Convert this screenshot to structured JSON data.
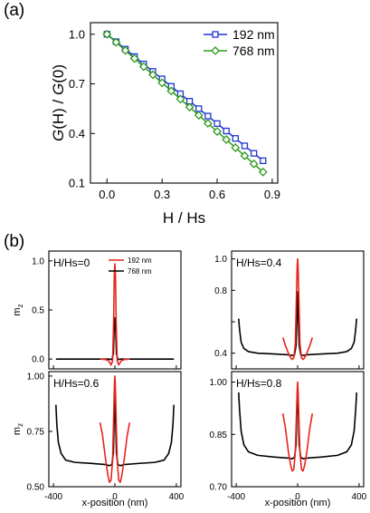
{
  "figure": {
    "panel_a_label": "(a)",
    "panel_b_label": "(b)"
  },
  "chart_data": [
    {
      "panel": "a",
      "type": "line",
      "xlabel": "H / Hs",
      "ylabel_parts": [
        "G",
        "(H) / ",
        "G",
        "(0)"
      ],
      "xlim": [
        -0.09,
        0.93
      ],
      "ylim": [
        0.1,
        1.07
      ],
      "xticks": [
        0.0,
        0.3,
        0.6,
        0.9
      ],
      "xtick_labels": [
        "0.0",
        "0.3",
        "0.6",
        "0.9"
      ],
      "yticks": [
        0.1,
        0.4,
        0.7,
        1.0
      ],
      "ytick_labels": [
        "0.1",
        "0.4",
        "0.7",
        "1.0"
      ],
      "legend_position": "top-right",
      "series": [
        {
          "name": "192 nm",
          "color": "#1f35d6",
          "marker": "square",
          "x": [
            0.0,
            0.05,
            0.1,
            0.15,
            0.2,
            0.25,
            0.3,
            0.35,
            0.4,
            0.45,
            0.5,
            0.55,
            0.6,
            0.65,
            0.7,
            0.75,
            0.8,
            0.85
          ],
          "y": [
            1.0,
            0.955,
            0.91,
            0.865,
            0.82,
            0.775,
            0.73,
            0.685,
            0.64,
            0.595,
            0.55,
            0.505,
            0.46,
            0.415,
            0.37,
            0.325,
            0.28,
            0.235
          ]
        },
        {
          "name": "768 nm",
          "color": "#2e9a1c",
          "marker": "diamond",
          "x": [
            0.0,
            0.05,
            0.1,
            0.15,
            0.2,
            0.25,
            0.3,
            0.35,
            0.4,
            0.45,
            0.5,
            0.55,
            0.6,
            0.65,
            0.7,
            0.75,
            0.8,
            0.85
          ],
          "y": [
            1.0,
            0.951,
            0.902,
            0.853,
            0.804,
            0.755,
            0.706,
            0.657,
            0.608,
            0.559,
            0.51,
            0.461,
            0.412,
            0.363,
            0.314,
            0.265,
            0.216,
            0.167
          ]
        }
      ]
    },
    {
      "panel": "b1",
      "type": "line",
      "annotation": "H/Hs=0",
      "ylabel": "m",
      "ylabel_sub": "z",
      "xlim": [
        -430,
        430
      ],
      "ylim": [
        -0.1,
        1.1
      ],
      "yticks": [
        0.0,
        0.5,
        1.0
      ],
      "ytick_labels": [
        "0.0",
        "0.5",
        "1.0"
      ],
      "xticks": [
        -400,
        0,
        400
      ],
      "show_xtick_labels": false,
      "legend": [
        "192 nm",
        "768 nm"
      ],
      "series": [
        {
          "name": "192 nm",
          "color": "#e8231a",
          "x": [
            -96,
            -60,
            -40,
            -25,
            -15,
            -8,
            -4,
            0,
            4,
            8,
            15,
            25,
            40,
            60,
            96
          ],
          "y": [
            0.0,
            -0.005,
            -0.02,
            -0.06,
            -0.02,
            0.4,
            0.85,
            0.97,
            0.85,
            0.4,
            -0.02,
            -0.06,
            -0.02,
            -0.005,
            0.0
          ]
        },
        {
          "name": "768 nm",
          "color": "#000000",
          "x": [
            -384,
            -200,
            -100,
            -40,
            -20,
            -10,
            -5,
            0,
            5,
            10,
            20,
            40,
            100,
            200,
            384
          ],
          "y": [
            0.0,
            0.0,
            0.0,
            0.0,
            -0.005,
            0.05,
            0.3,
            0.42,
            0.3,
            0.05,
            -0.005,
            0.0,
            0.0,
            0.0,
            0.0
          ]
        }
      ]
    },
    {
      "panel": "b2",
      "type": "line",
      "annotation": "H/Hs=0.4",
      "xlim": [
        -430,
        430
      ],
      "ylim": [
        0.3,
        1.05
      ],
      "yticks": [
        0.4,
        0.6,
        0.8,
        1.0
      ],
      "ytick_labels": [
        "0.4",
        "",
        "0.8",
        "1.0"
      ],
      "xticks": [
        -400,
        0,
        400
      ],
      "show_xtick_labels": false,
      "series": [
        {
          "name": "192 nm",
          "color": "#e8231a",
          "x": [
            -96,
            -80,
            -60,
            -45,
            -35,
            -25,
            -15,
            -8,
            -3,
            0,
            3,
            8,
            15,
            25,
            35,
            45,
            60,
            80,
            96
          ],
          "y": [
            0.5,
            0.45,
            0.4,
            0.37,
            0.36,
            0.37,
            0.46,
            0.75,
            0.95,
            1.0,
            0.95,
            0.75,
            0.46,
            0.37,
            0.36,
            0.37,
            0.4,
            0.45,
            0.5
          ]
        },
        {
          "name": "768 nm",
          "color": "#000000",
          "x": [
            -384,
            -378,
            -368,
            -350,
            -320,
            -260,
            -150,
            -60,
            -35,
            -20,
            -10,
            -4,
            0,
            4,
            10,
            20,
            35,
            60,
            150,
            260,
            320,
            350,
            368,
            378,
            384
          ],
          "y": [
            0.62,
            0.55,
            0.47,
            0.43,
            0.41,
            0.4,
            0.395,
            0.39,
            0.385,
            0.39,
            0.45,
            0.65,
            0.79,
            0.65,
            0.45,
            0.39,
            0.385,
            0.39,
            0.395,
            0.4,
            0.41,
            0.43,
            0.47,
            0.55,
            0.62
          ]
        }
      ]
    },
    {
      "panel": "b3",
      "type": "line",
      "annotation": "H/Hs=0.6",
      "ylabel": "m",
      "ylabel_sub": "z",
      "xlim": [
        -430,
        430
      ],
      "ylim": [
        0.5,
        1.02
      ],
      "xticks": [
        -400,
        0,
        400
      ],
      "xtick_labels": [
        "-400",
        "0",
        "400"
      ],
      "yticks": [
        0.5,
        0.75,
        1.0
      ],
      "ytick_labels": [
        "0.50",
        "0.75",
        "1.00"
      ],
      "xlabel": "x-position (nm)",
      "series": [
        {
          "name": "192 nm",
          "color": "#e8231a",
          "x": [
            -96,
            -80,
            -60,
            -45,
            -35,
            -25,
            -15,
            -8,
            -3,
            0,
            3,
            8,
            15,
            25,
            35,
            45,
            60,
            80,
            96
          ],
          "y": [
            0.79,
            0.73,
            0.62,
            0.55,
            0.52,
            0.53,
            0.62,
            0.82,
            0.96,
            1.0,
            0.96,
            0.82,
            0.62,
            0.53,
            0.52,
            0.55,
            0.62,
            0.73,
            0.79
          ]
        },
        {
          "name": "768 nm",
          "color": "#000000",
          "x": [
            -384,
            -378,
            -368,
            -350,
            -320,
            -260,
            -150,
            -60,
            -35,
            -20,
            -10,
            -4,
            0,
            4,
            10,
            20,
            35,
            60,
            150,
            260,
            320,
            350,
            368,
            378,
            384
          ],
          "y": [
            0.87,
            0.78,
            0.7,
            0.65,
            0.62,
            0.61,
            0.605,
            0.6,
            0.595,
            0.6,
            0.65,
            0.82,
            0.91,
            0.82,
            0.65,
            0.6,
            0.595,
            0.6,
            0.605,
            0.61,
            0.62,
            0.65,
            0.7,
            0.78,
            0.87
          ]
        }
      ]
    },
    {
      "panel": "b4",
      "type": "line",
      "annotation": "H/Hs=0.8",
      "xlim": [
        -430,
        430
      ],
      "ylim": [
        0.7,
        1.03
      ],
      "xticks": [
        -400,
        0,
        400
      ],
      "xtick_labels": [
        "-400",
        "0",
        "400"
      ],
      "yticks": [
        0.7,
        0.85,
        1.0
      ],
      "ytick_labels": [
        "0.70",
        "0.85",
        "1.00"
      ],
      "xlabel": "x-position (nm)",
      "series": [
        {
          "name": "192 nm",
          "color": "#e8231a",
          "x": [
            -96,
            -80,
            -60,
            -45,
            -35,
            -25,
            -15,
            -8,
            -3,
            0,
            3,
            8,
            15,
            25,
            35,
            45,
            60,
            80,
            96
          ],
          "y": [
            0.91,
            0.87,
            0.8,
            0.76,
            0.745,
            0.75,
            0.8,
            0.9,
            0.975,
            1.0,
            0.975,
            0.9,
            0.8,
            0.75,
            0.745,
            0.76,
            0.8,
            0.87,
            0.91
          ]
        },
        {
          "name": "768 nm",
          "color": "#000000",
          "x": [
            -384,
            -378,
            -368,
            -350,
            -320,
            -260,
            -150,
            -60,
            -35,
            -20,
            -10,
            -4,
            0,
            4,
            10,
            20,
            35,
            60,
            150,
            260,
            320,
            350,
            368,
            378,
            384
          ],
          "y": [
            0.97,
            0.92,
            0.86,
            0.82,
            0.8,
            0.79,
            0.785,
            0.782,
            0.78,
            0.785,
            0.82,
            0.93,
            0.99,
            0.93,
            0.82,
            0.785,
            0.78,
            0.782,
            0.785,
            0.79,
            0.8,
            0.82,
            0.86,
            0.92,
            0.97
          ]
        }
      ]
    }
  ]
}
